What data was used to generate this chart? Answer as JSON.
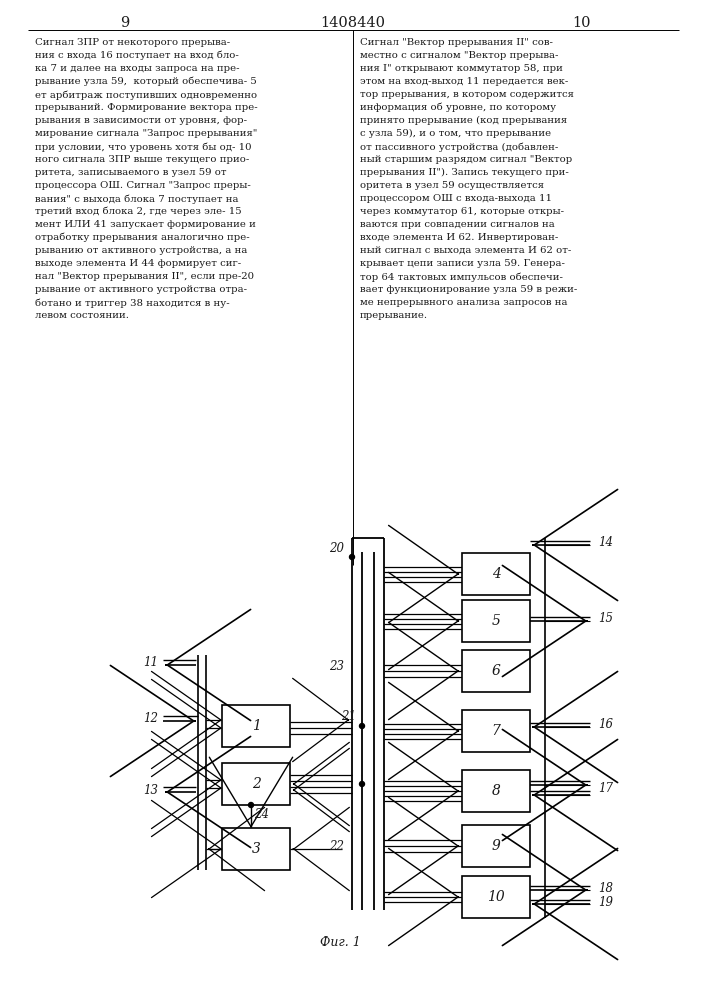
{
  "title": "1408440",
  "page_left": "9",
  "page_right": "10",
  "fig_label": "Фиг. 1",
  "bg_color": "#ffffff",
  "lc": "#000000",
  "tc": "#1a1a1a",
  "left_text_lines": [
    "Сигнал ЗПР от некоторого прерыва-",
    "ния с входа 16 поступает на вход бло-",
    "ка 7 и далее на входы запроса на пре-",
    "рывание узла 59,  который обеспечива- 5",
    "ет арбитраж поступивших одновременно",
    "прерываний. Формирование вектора пре-",
    "рывания в зависимости от уровня, фор-",
    "мирование сигнала \"Запрос прерывания\"",
    "при условии, что уровень хотя бы од- 10",
    "ного сигнала ЗПР выше текущего прио-",
    "ритета, записываемого в узел 59 от",
    "процессора ОШ. Сигнал \"Запрос преры-",
    "вания\" с выхода блока 7 поступает на",
    "третий вход блока 2, где через эле- 15",
    "мент ИЛИ 41 запускает формирование и",
    "отработку прерывания аналогично пре-",
    "рыванию от активного устройства, а на",
    "выходе элемента И 44 формирует сиг-",
    "нал \"Вектор прерывания II\", если пре-20",
    "рывание от активного устройства отра-",
    "ботано и триггер 38 находится в ну-",
    "левом состоянии."
  ],
  "right_text_lines": [
    "Сигнал \"Вектор прерывания II\" сов-",
    "местно с сигналом \"Вектор прерыва-",
    "ния I\" открывают коммутатор 58, при",
    "этом на вход-выход 11 передается век-",
    "тор прерывания, в котором содержится",
    "информация об уровне, по которому",
    "принято прерывание (код прерывания",
    "с узла 59), и о том, что прерывание",
    "от пассивного устройства (добавлен-",
    "ный старшим разрядом сигнал \"Вектор",
    "прерывания II\"). Запись текущего при-",
    "оритета в узел 59 осуществляется",
    "процессором ОШ с входа-выхода 11",
    "через коммутатор 61, которые откры-",
    "ваются при совпадении сигналов на",
    "входе элемента И 62. Инвертирован-",
    "ный сигнал с выхода элемента И 62 от-",
    "крывает цепи записи узла 59. Генера-",
    "тор 64 тактовых импульсов обеспечи-",
    "вает функционирование узла 59 в режи-",
    "ме непрерывного анализа запросов на",
    "прерывание."
  ]
}
